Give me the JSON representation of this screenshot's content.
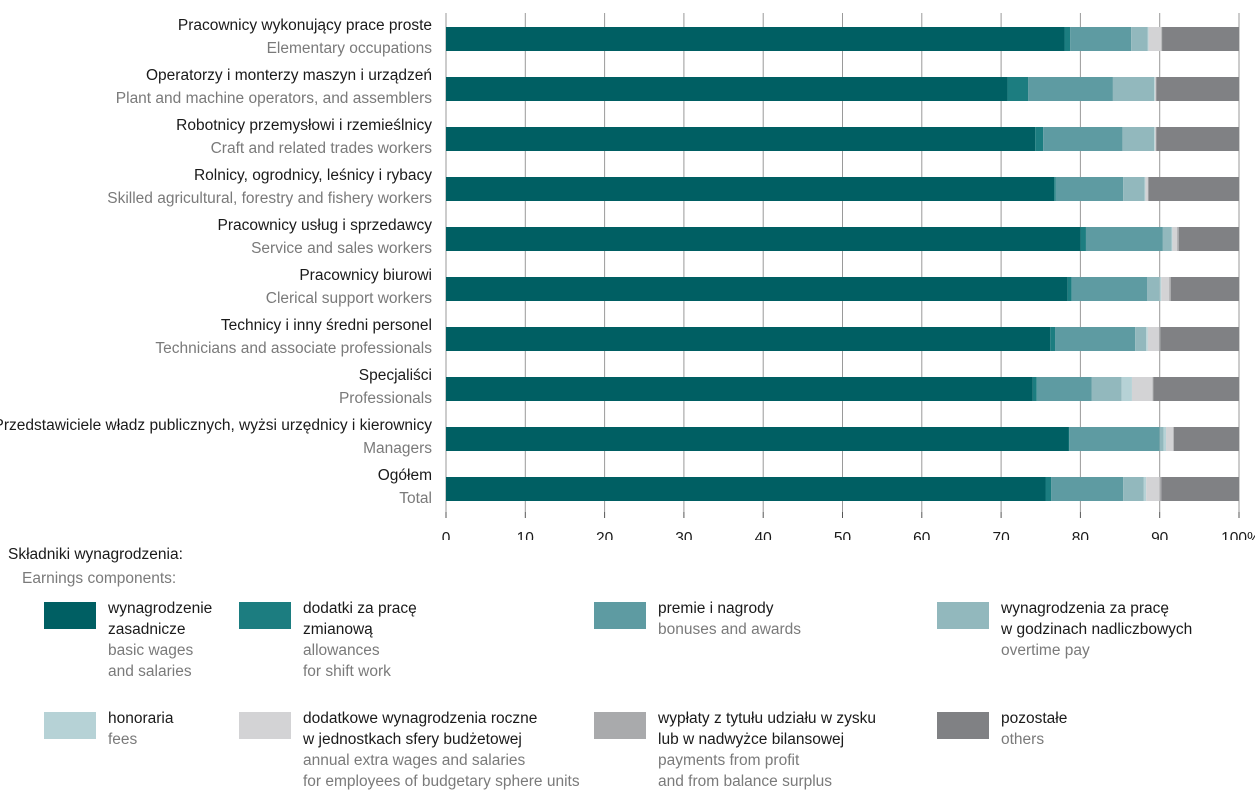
{
  "chart_data": {
    "type": "bar",
    "orientation": "horizontal",
    "stacked": true,
    "categories_pl": [
      "Pracownicy wykonujący prace proste",
      "Operatorzy i monterzy maszyn i urządzeń",
      "Robotnicy przemysłowi i rzemieślnicy",
      "Rolnicy, ogrodnicy, leśnicy i rybacy",
      "Pracownicy usług i sprzedawcy",
      "Pracownicy biurowi",
      "Technicy i inny średni personel",
      "Specjaliści",
      "Przedstawiciele władz publicznych, wyżsi urzędnicy i kierownicy",
      "Ogółem"
    ],
    "categories_en": [
      "Elementary occupations",
      "Plant and machine operators, and assemblers",
      "Craft and related trades workers",
      "Skilled agricultural, forestry and fishery workers",
      "Service and sales workers",
      "Clerical support workers",
      "Technicians and associate professionals",
      "Professionals",
      "Managers",
      "Total"
    ],
    "xticks": [
      "0",
      "10",
      "20",
      "30",
      "40",
      "50",
      "60",
      "70",
      "80",
      "90",
      "100%"
    ],
    "xlim": [
      0,
      100
    ],
    "series": [
      {
        "name": "wynagrodzenie zasadnicze",
        "color": "#005f63",
        "values": [
          78.0,
          70.8,
          74.3,
          76.7,
          80.0,
          78.4,
          76.2,
          74.0,
          78.5,
          75.6
        ]
      },
      {
        "name": "dodatki za pracę zmianową",
        "color": "#1c7d80",
        "values": [
          0.7,
          2.6,
          1.0,
          0.2,
          0.7,
          0.5,
          0.6,
          0.5,
          0.1,
          0.7
        ]
      },
      {
        "name": "premie i nagrody",
        "color": "#5e9ba2",
        "values": [
          7.7,
          10.7,
          10.0,
          8.5,
          9.7,
          9.5,
          10.1,
          6.9,
          11.4,
          9.1
        ]
      },
      {
        "name": "wynagrodzenia za pracę w godzinach nadliczbowych",
        "color": "#92b8bd",
        "values": [
          2.1,
          5.2,
          4.0,
          2.7,
          1.1,
          1.6,
          1.4,
          3.8,
          0.5,
          2.6
        ]
      },
      {
        "name": "honoraria",
        "color": "#b6d2d6",
        "values": [
          0.1,
          0.1,
          0.1,
          0.1,
          0.1,
          0.2,
          0.2,
          1.3,
          0.3,
          0.3
        ]
      },
      {
        "name": "dodatkowe wynagrodzenia roczne w jednostkach sfery budżetowej",
        "color": "#d3d3d5",
        "values": [
          1.6,
          0.1,
          0.1,
          0.3,
          0.6,
          1.0,
          1.4,
          2.6,
          0.9,
          1.7
        ]
      },
      {
        "name": "wypłaty z tytułu udziału w zysku lub w nadwyżce bilansowej",
        "color": "#a9aaac",
        "values": [
          0.1,
          0.1,
          0.1,
          0.1,
          0.2,
          0.2,
          0.2,
          0.1,
          0.1,
          0.2
        ]
      },
      {
        "name": "pozostałe",
        "color": "#808184",
        "values": [
          9.7,
          10.4,
          10.4,
          11.4,
          7.6,
          8.6,
          9.9,
          10.8,
          8.2,
          9.8
        ]
      }
    ]
  },
  "legend": {
    "title": "Składniki wynagrodzenia:",
    "subtitle": "Earnings components:",
    "items": [
      {
        "pl": "wynagrodzenie\nzasadnicze",
        "en": "basic wages\nand salaries"
      },
      {
        "pl": "dodatki za pracę\nzmianową",
        "en": "allowances\nfor shift work"
      },
      {
        "pl": "premie i nagrody",
        "en": "bonuses and awards"
      },
      {
        "pl": "wynagrodzenia za pracę\nw godzinach nadliczbowych",
        "en": "overtime pay"
      },
      {
        "pl": "honoraria",
        "en": "fees"
      },
      {
        "pl": "dodatkowe wynagrodzenia roczne\nw jednostkach sfery budżetowej",
        "en": "annual extra wages and salaries\nfor employees of budgetary sphere units"
      },
      {
        "pl": "wypłaty z tytułu udziału w zysku\nlub w nadwyżce bilansowej",
        "en": "payments from profit\nand from balance surplus"
      },
      {
        "pl": "pozostałe",
        "en": "others"
      }
    ]
  }
}
